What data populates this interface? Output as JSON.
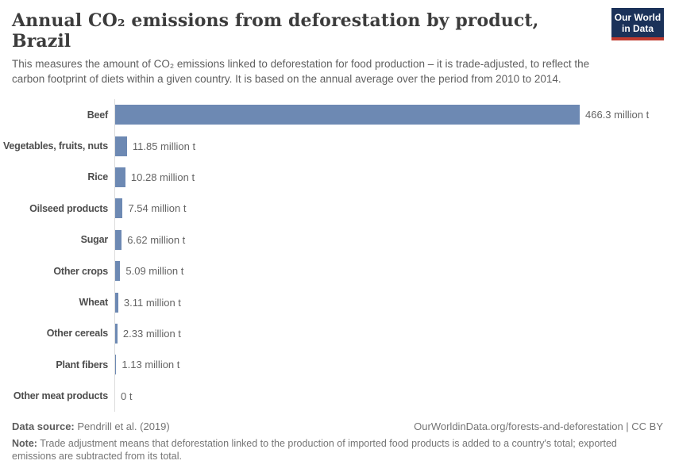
{
  "header": {
    "title": "Annual CO₂ emissions from deforestation by product, Brazil",
    "subtitle": "This measures the amount of CO₂ emissions linked to deforestation for food production – it is trade-adjusted, to reflect the carbon footprint of diets within a given country. It is based on the annual average over the period from 2010 to 2014.",
    "logo": {
      "line1": "Our World",
      "line2": "in Data",
      "bg_color": "#1b3259",
      "stripe_color": "#bf3a2e"
    }
  },
  "chart_data": {
    "type": "bar",
    "orientation": "horizontal",
    "title": "Annual CO₂ emissions from deforestation by product, Brazil",
    "unit": "million t",
    "categories": [
      "Beef",
      "Vegetables, fruits, nuts",
      "Rice",
      "Oilseed products",
      "Sugar",
      "Other crops",
      "Wheat",
      "Other cereals",
      "Plant fibers",
      "Other meat products"
    ],
    "values": [
      466.3,
      11.85,
      10.28,
      7.54,
      6.62,
      5.09,
      3.11,
      2.33,
      1.13,
      0
    ],
    "value_labels": [
      "466.3 million t",
      "11.85 million t",
      "10.28 million t",
      "7.54 million t",
      "6.62 million t",
      "5.09 million t",
      "3.11 million t",
      "2.33 million t",
      "1.13 million t",
      "0 t"
    ],
    "xlim": [
      0,
      466.3
    ],
    "bar_color": "#6d89b3",
    "grid": false,
    "legend": false
  },
  "footer": {
    "source_label": "Data source:",
    "source_text": "Pendrill et al. (2019)",
    "link_text": "OurWorldinData.org/forests-and-deforestation | CC BY",
    "note_label": "Note:",
    "note_line1": "Trade adjustment means that deforestation linked to the production of imported food products is added to a country's total; exported",
    "note_line2": "emissions are subtracted from its total."
  }
}
